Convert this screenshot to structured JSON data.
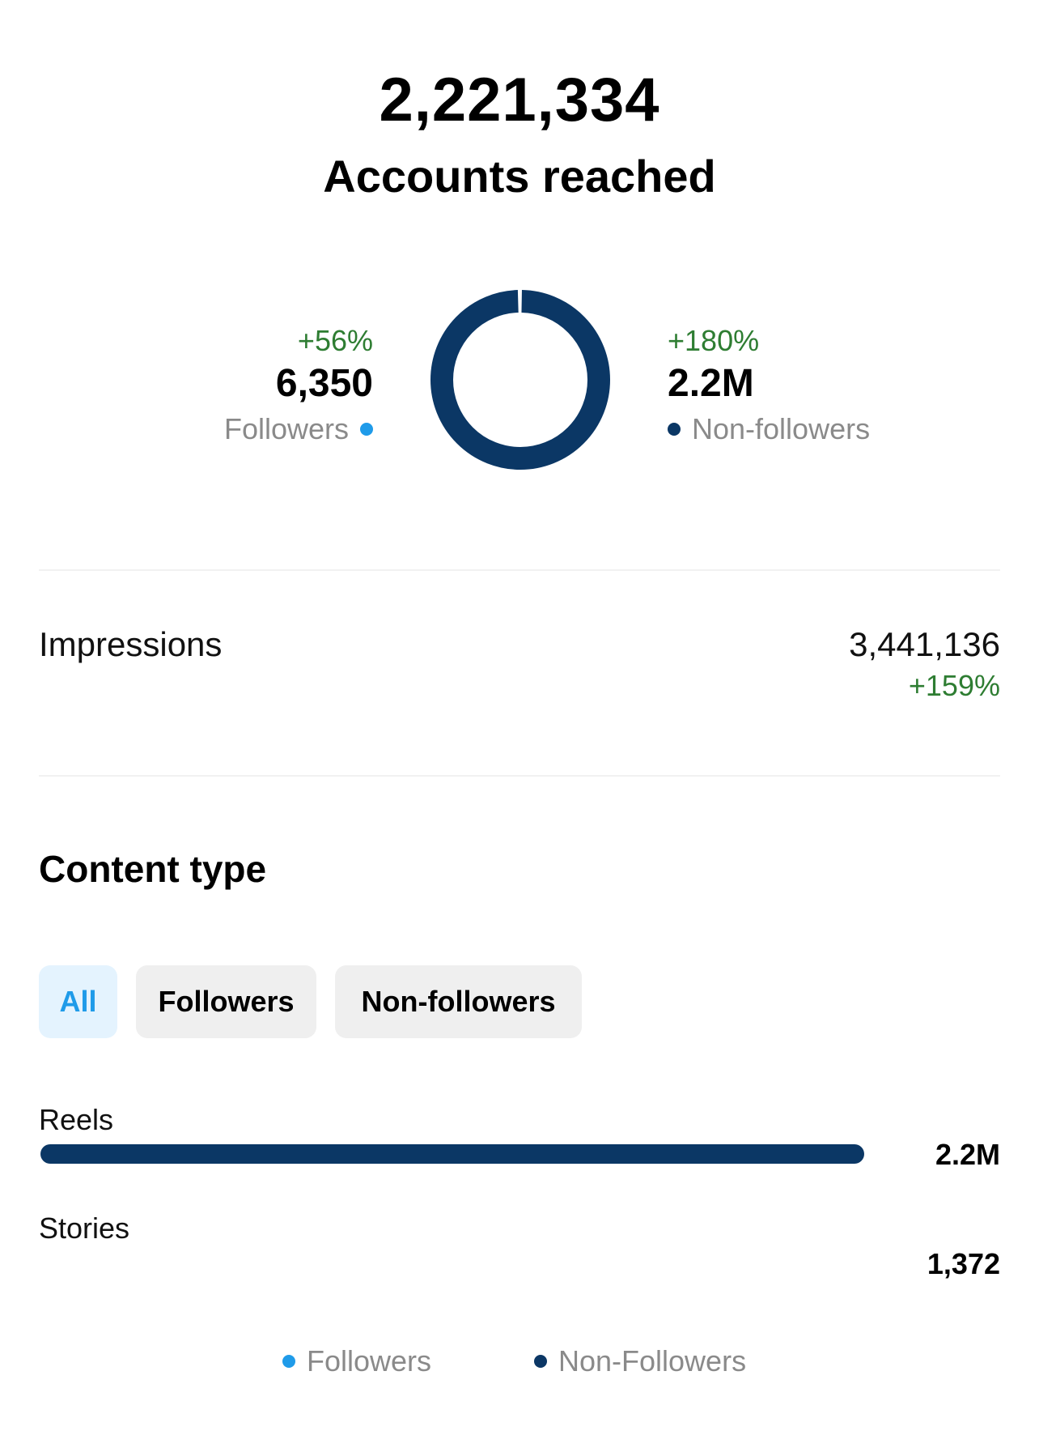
{
  "summary": {
    "total": "2,221,334",
    "title": "Accounts reached"
  },
  "followers": {
    "change": "+56%",
    "value": "6,350",
    "label": "Followers",
    "color": "#1f9be9"
  },
  "non_followers": {
    "change": "+180%",
    "value": "2.2M",
    "label": "Non-followers",
    "color": "#0b3765"
  },
  "chart_data": {
    "type": "pie",
    "donut": true,
    "slices": [
      {
        "name": "Followers",
        "value": 6350,
        "color": "#1f9be9"
      },
      {
        "name": "Non-followers",
        "value": 2214984,
        "color": "#0b3765"
      }
    ]
  },
  "impressions": {
    "label": "Impressions",
    "value": "3,441,136",
    "change": "+159%"
  },
  "content_type": {
    "title": "Content type",
    "tabs": [
      {
        "label": "All",
        "active": true
      },
      {
        "label": "Followers",
        "active": false
      },
      {
        "label": "Non-followers",
        "active": false
      }
    ],
    "rows": [
      {
        "label": "Reels",
        "value": "2.2M",
        "fraction": 1.0
      },
      {
        "label": "Stories",
        "value": "1,372",
        "fraction": 0.0006
      }
    ],
    "legend": [
      {
        "label": "Followers",
        "color": "#1f9be9"
      },
      {
        "label": "Non-Followers",
        "color": "#0b3765"
      }
    ]
  }
}
